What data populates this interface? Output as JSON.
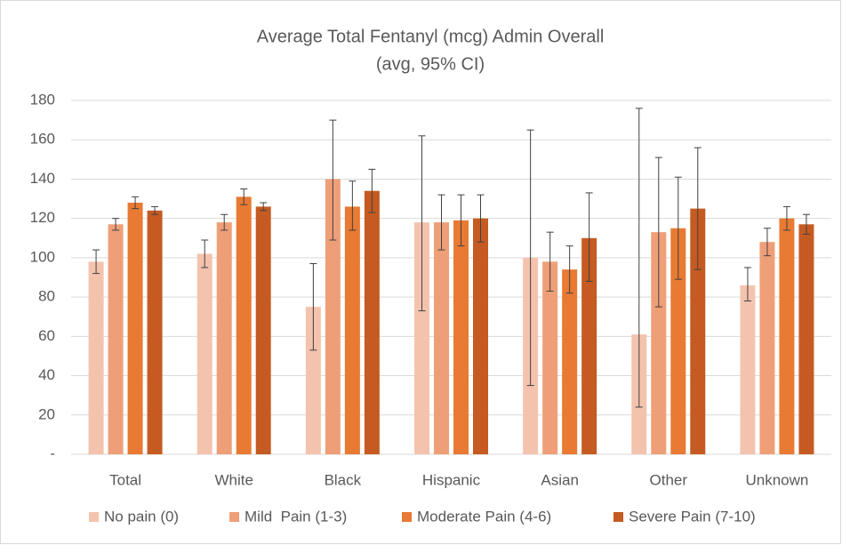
{
  "chart_data": {
    "type": "bar",
    "title": "Average Total Fentanyl (mcg) Admin Overall",
    "subtitle": "(avg, 95% CI)",
    "categories": [
      "Total",
      "White",
      "Black",
      "Hispanic",
      "Asian",
      "Other",
      "Unknown"
    ],
    "series": [
      {
        "name": "No pain (0)",
        "color": "#f4c3ae",
        "values": [
          98,
          102,
          75,
          118,
          100,
          61,
          86
        ],
        "ci_low": [
          92,
          95,
          53,
          73,
          35,
          24,
          78
        ],
        "ci_high": [
          104,
          109,
          97,
          162,
          165,
          176,
          95
        ]
      },
      {
        "name": "Mild  Pain (1-3)",
        "color": "#ef9f78",
        "values": [
          117,
          118,
          140,
          118,
          98,
          113,
          108
        ],
        "ci_low": [
          114,
          114,
          109,
          104,
          83,
          75,
          101
        ],
        "ci_high": [
          120,
          122,
          170,
          132,
          113,
          151,
          115
        ]
      },
      {
        "name": "Moderate Pain (4-6)",
        "color": "#e87a33",
        "values": [
          128,
          131,
          126,
          119,
          94,
          115,
          120
        ],
        "ci_low": [
          125,
          127,
          114,
          106,
          82,
          89,
          114
        ],
        "ci_high": [
          131,
          135,
          139,
          132,
          106,
          141,
          126
        ]
      },
      {
        "name": "Severe Pain (7-10)",
        "color": "#c55b22",
        "values": [
          124,
          126,
          134,
          120,
          110,
          125,
          117
        ],
        "ci_low": [
          122,
          124,
          123,
          108,
          88,
          94,
          112
        ],
        "ci_high": [
          126,
          128,
          145,
          132,
          133,
          156,
          122
        ]
      }
    ],
    "ylim": [
      0,
      180
    ],
    "yticks": [
      {
        "value": 0,
        "label": "-"
      },
      20,
      40,
      60,
      80,
      100,
      120,
      140,
      160,
      180
    ],
    "grid": true,
    "legend": "bottom"
  }
}
